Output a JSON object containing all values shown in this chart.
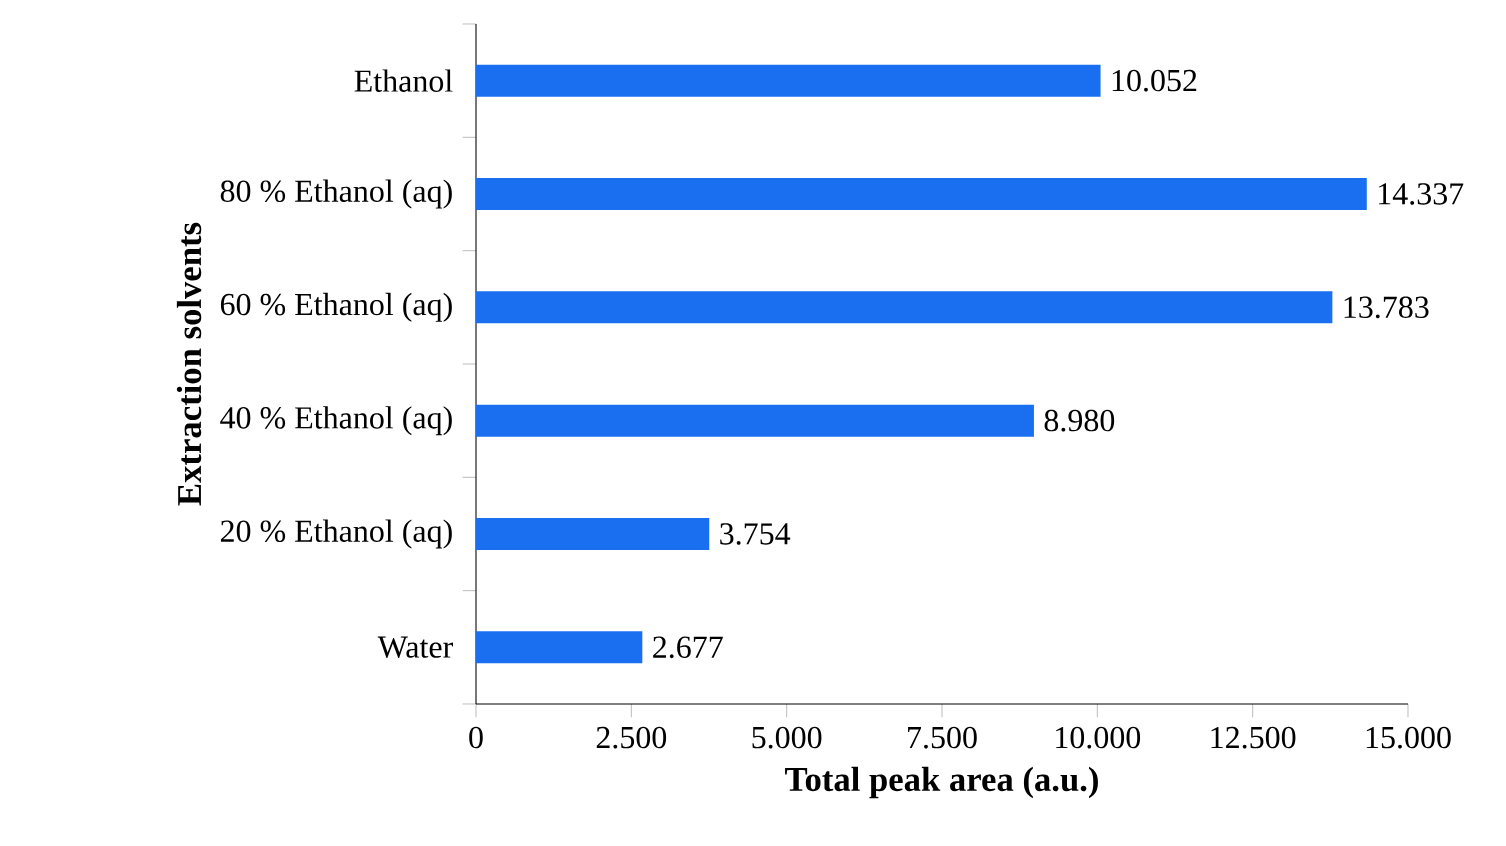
{
  "chart_data": {
    "type": "bar",
    "orientation": "horizontal",
    "xlabel": "Total peak area (a.u.)",
    "ylabel": "Extraction solvents",
    "categories": [
      "Ethanol",
      "80 % Ethanol (aq)",
      "60 % Ethanol (aq)",
      "40 % Ethanol (aq)",
      "20 % Ethanol (aq)",
      "Water"
    ],
    "values": [
      10052,
      14337,
      13783,
      8980,
      3754,
      2677
    ],
    "value_labels": [
      "10.052",
      "14.337",
      "13.783",
      "8.980",
      "3.754",
      "2.677"
    ],
    "color": "#1a6ff0",
    "xlim": [
      0,
      15000
    ],
    "xticks": [
      0,
      {
        "value": 2500,
        "label": "2.500"
      },
      {
        "value": 5000,
        "label": "5.000"
      },
      {
        "value": 7500,
        "label": "7.500"
      },
      {
        "value": 10000,
        "label": "10.000"
      },
      {
        "value": 12500,
        "label": "12.500"
      },
      {
        "value": 15000,
        "label": "15.000"
      }
    ],
    "grid": false
  }
}
